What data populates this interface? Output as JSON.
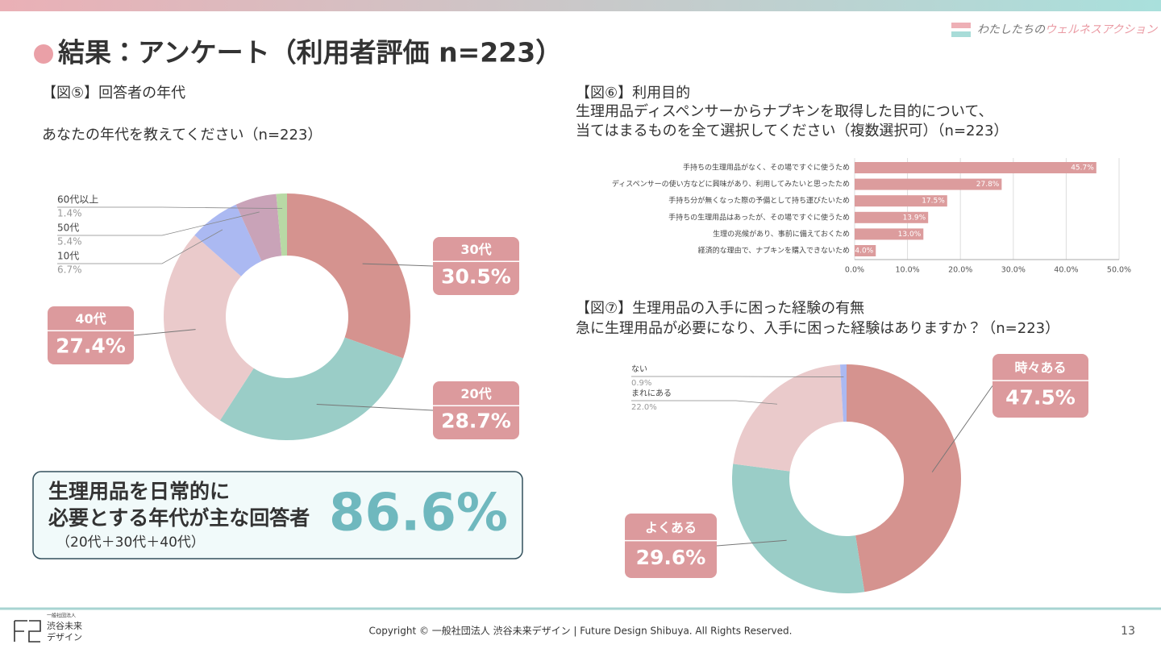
{
  "header": {
    "title": "結果：アンケート（利用者評価 n=223）",
    "brand": [
      "わたしたちの",
      "ウェルネスアクション"
    ]
  },
  "chart_data": [
    {
      "type": "donut",
      "figure_label": "【図⑤】回答者の年代",
      "title": "あなたの年代を教えてください（n=223）",
      "categories": [
        "30代",
        "20代",
        "40代",
        "10代",
        "50代",
        "60代以上"
      ],
      "values": [
        30.5,
        28.7,
        27.4,
        6.7,
        5.4,
        1.4
      ],
      "value_labels": [
        "30.5%",
        "28.7%",
        "27.4%",
        "6.7%",
        "5.4%",
        "1.4%"
      ],
      "colors": [
        "#d5938f",
        "#9acdc7",
        "#eacacb",
        "#abb9f2",
        "#c9a3b8",
        "#b8d9a5"
      ]
    },
    {
      "type": "hbar",
      "figure_label": "【図⑥】利用目的",
      "title": [
        "生理用品ディスペンサーからナプキンを取得した目的について、",
        "当てはまるものを全て選択してください（複数選択可）（n=223）"
      ],
      "categories": [
        "手持ちの生理用品がなく、その場ですぐに使うため",
        "ディスペンサーの使い方などに興味があり、利用してみたいと思ったため",
        "手持ち分が無くなった際の予備として持ち運びたいため",
        "手持ちの生理用品はあったが、その場ですぐに使うため",
        "生理の兆候があり、事前に備えておくため",
        "経済的な理由で、ナプキンを購入できないため"
      ],
      "values": [
        45.7,
        27.8,
        17.5,
        13.9,
        13.0,
        4.0
      ],
      "value_labels": [
        "45.7%",
        "27.8%",
        "17.5%",
        "13.9%",
        "13.0%",
        "4.0%"
      ],
      "color": "#dc9c9d",
      "xlim": [
        0,
        50
      ],
      "xticks": [
        {
          "value": 0,
          "label": "0.0%"
        },
        {
          "value": 10,
          "label": "10.0%"
        },
        {
          "value": 20,
          "label": "20.0%"
        },
        {
          "value": 30,
          "label": "30.0%"
        },
        {
          "value": 40,
          "label": "40.0%"
        },
        {
          "value": 50,
          "label": "50.0%"
        }
      ],
      "grid": true
    },
    {
      "type": "donut",
      "figure_label": "【図⑦】生理用品の入手に困った経験の有無",
      "title": "急に生理用品が必要になり、入手に困った経験はありますか？（n=223）",
      "categories": [
        "時々ある",
        "よくある",
        "まれにある",
        "ない"
      ],
      "values": [
        47.5,
        29.6,
        22.0,
        0.9
      ],
      "value_labels": [
        "47.5%",
        "29.6%",
        "22.0%",
        "0.9%"
      ],
      "colors": [
        "#d5938f",
        "#9acdc7",
        "#eacacb",
        "#abb9f2"
      ]
    }
  ],
  "highlight": {
    "lines": [
      "生理用品を日常的に",
      "必要とする年代が主な回答者"
    ],
    "note": "（20代＋30代＋40代）",
    "value": "86.6%"
  },
  "footer": {
    "logo": [
      "一般社団法人",
      "渋谷未来",
      "デザイン"
    ],
    "copyright": "Copyright © 一般社団法人 渋谷未来デザイン | Future Design Shibuya. All Rights Reserved.",
    "page": "13"
  }
}
